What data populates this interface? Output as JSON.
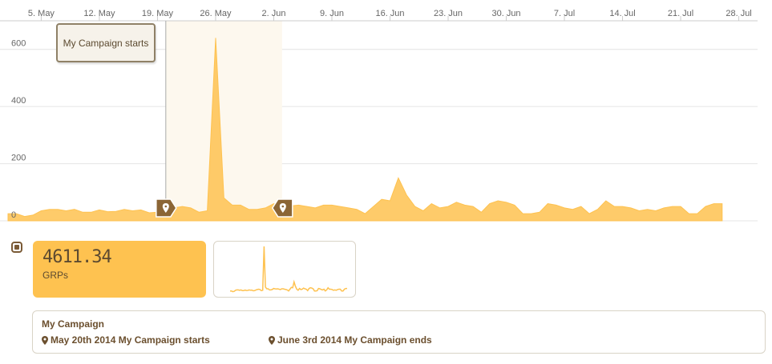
{
  "chart_data": {
    "type": "area",
    "x_tick_labels": [
      "5. May",
      "12. May",
      "19. May",
      "26. May",
      "2. Jun",
      "9. Jun",
      "16. Jun",
      "23. Jun",
      "30. Jun",
      "7. Jul",
      "14. Jul",
      "21. Jul",
      "28. Jul"
    ],
    "x_start": "2014-05-01",
    "x_end": "2014-08-01",
    "y_ticks": [
      0,
      200,
      400,
      600
    ],
    "ylim": [
      0,
      700
    ],
    "grid": true,
    "series": [
      {
        "color": "#fec250",
        "points": [
          [
            "2014-05-01",
            25
          ],
          [
            "2014-05-02",
            25
          ],
          [
            "2014-05-03",
            15
          ],
          [
            "2014-05-04",
            20
          ],
          [
            "2014-05-05",
            35
          ],
          [
            "2014-05-06",
            40
          ],
          [
            "2014-05-07",
            40
          ],
          [
            "2014-05-08",
            35
          ],
          [
            "2014-05-09",
            40
          ],
          [
            "2014-05-10",
            30
          ],
          [
            "2014-05-11",
            30
          ],
          [
            "2014-05-12",
            38
          ],
          [
            "2014-05-13",
            32
          ],
          [
            "2014-05-14",
            33
          ],
          [
            "2014-05-15",
            40
          ],
          [
            "2014-05-16",
            35
          ],
          [
            "2014-05-17",
            38
          ],
          [
            "2014-05-18",
            28
          ],
          [
            "2014-05-19",
            30
          ],
          [
            "2014-05-20",
            40
          ],
          [
            "2014-05-21",
            45
          ],
          [
            "2014-05-22",
            50
          ],
          [
            "2014-05-23",
            45
          ],
          [
            "2014-05-24",
            30
          ],
          [
            "2014-05-25",
            35
          ],
          [
            "2014-05-26",
            640
          ],
          [
            "2014-05-27",
            80
          ],
          [
            "2014-05-28",
            55
          ],
          [
            "2014-05-29",
            55
          ],
          [
            "2014-05-30",
            40
          ],
          [
            "2014-05-31",
            40
          ],
          [
            "2014-06-01",
            45
          ],
          [
            "2014-06-02",
            60
          ],
          [
            "2014-06-03",
            55
          ],
          [
            "2014-06-04",
            52
          ],
          [
            "2014-06-05",
            55
          ],
          [
            "2014-06-06",
            50
          ],
          [
            "2014-06-07",
            45
          ],
          [
            "2014-06-08",
            55
          ],
          [
            "2014-06-09",
            55
          ],
          [
            "2014-06-10",
            50
          ],
          [
            "2014-06-11",
            45
          ],
          [
            "2014-06-12",
            40
          ],
          [
            "2014-06-13",
            25
          ],
          [
            "2014-06-14",
            50
          ],
          [
            "2014-06-15",
            75
          ],
          [
            "2014-06-16",
            70
          ],
          [
            "2014-06-17",
            150
          ],
          [
            "2014-06-18",
            90
          ],
          [
            "2014-06-19",
            50
          ],
          [
            "2014-06-20",
            35
          ],
          [
            "2014-06-21",
            60
          ],
          [
            "2014-06-22",
            45
          ],
          [
            "2014-06-23",
            50
          ],
          [
            "2014-06-24",
            65
          ],
          [
            "2014-06-25",
            55
          ],
          [
            "2014-06-26",
            50
          ],
          [
            "2014-06-27",
            30
          ],
          [
            "2014-06-28",
            60
          ],
          [
            "2014-06-29",
            70
          ],
          [
            "2014-06-30",
            65
          ],
          [
            "2014-07-01",
            55
          ],
          [
            "2014-07-02",
            25
          ],
          [
            "2014-07-03",
            25
          ],
          [
            "2014-07-04",
            30
          ],
          [
            "2014-07-05",
            60
          ],
          [
            "2014-07-06",
            55
          ],
          [
            "2014-07-07",
            45
          ],
          [
            "2014-07-08",
            40
          ],
          [
            "2014-07-09",
            50
          ],
          [
            "2014-07-10",
            25
          ],
          [
            "2014-07-11",
            40
          ],
          [
            "2014-07-12",
            70
          ],
          [
            "2014-07-13",
            50
          ],
          [
            "2014-07-14",
            50
          ],
          [
            "2014-07-15",
            45
          ],
          [
            "2014-07-16",
            35
          ],
          [
            "2014-07-17",
            40
          ],
          [
            "2014-07-18",
            35
          ],
          [
            "2014-07-19",
            45
          ],
          [
            "2014-07-20",
            50
          ],
          [
            "2014-07-21",
            50
          ],
          [
            "2014-07-22",
            25
          ],
          [
            "2014-07-23",
            25
          ],
          [
            "2014-07-24",
            50
          ],
          [
            "2014-07-25",
            60
          ],
          [
            "2014-07-26",
            60
          ]
        ]
      }
    ],
    "plot_band": {
      "from": "2014-05-20",
      "to": "2014-06-03"
    },
    "markers": [
      {
        "date": "2014-05-20",
        "kind": "start"
      },
      {
        "date": "2014-06-03",
        "kind": "end"
      }
    ]
  },
  "tooltip": {
    "text": "My Campaign starts"
  },
  "legend": {
    "checked": true
  },
  "metric": {
    "value": "4611.34",
    "label": "GRPs"
  },
  "campaign": {
    "title": "My Campaign",
    "events": [
      {
        "text": "May 20th 2014 My Campaign starts"
      },
      {
        "text": "June 3rd 2014 My Campaign ends"
      }
    ]
  },
  "colors": {
    "accent": "#fec250",
    "marker": "#8b6535",
    "text": "#6b4f2e"
  }
}
